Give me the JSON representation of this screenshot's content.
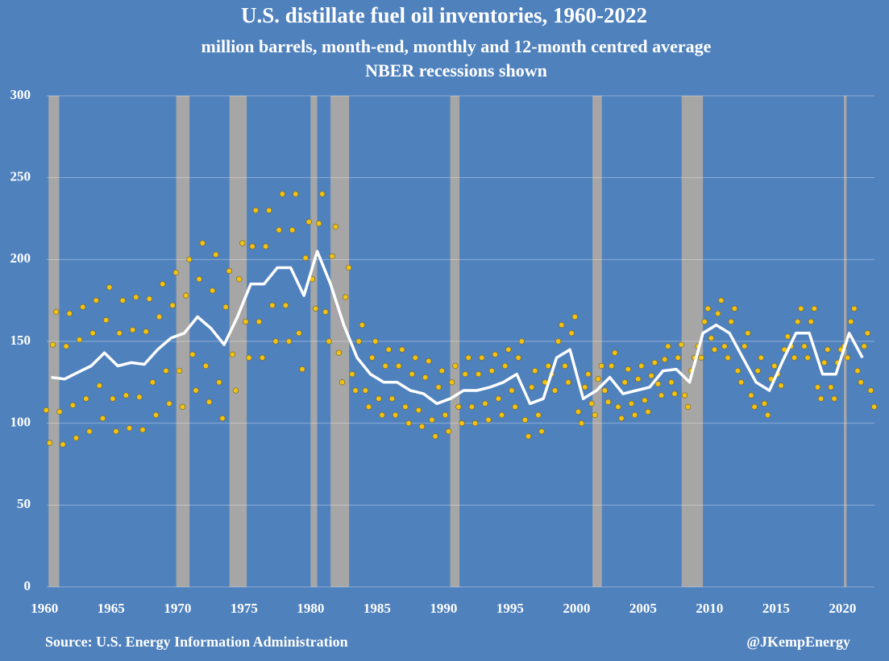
{
  "chart_data": {
    "type": "scatter",
    "title": "U.S. distillate fuel oil inventories, 1960-2022",
    "subtitle": "million barrels, month-end, monthly and 12-month centred average",
    "subtitle2": "NBER recessions shown",
    "source": "Source: U.S. Energy Information Administration",
    "credit": "@JKempEnergy",
    "xlim": [
      1959.8,
      2022.4
    ],
    "ylim": [
      0,
      300
    ],
    "xticks": [
      1960,
      1965,
      1970,
      1975,
      1980,
      1985,
      1990,
      1995,
      2000,
      2005,
      2010,
      2015,
      2020
    ],
    "yticks": [
      0,
      50,
      100,
      150,
      200,
      250,
      300
    ],
    "grid": true,
    "recession_color": "#a6a6a6",
    "recessions": [
      [
        1960.3,
        1961.1
      ],
      [
        1969.9,
        1970.9
      ],
      [
        1973.9,
        1975.2
      ],
      [
        1980.0,
        1980.5
      ],
      [
        1981.5,
        1982.9
      ],
      [
        1990.5,
        1991.2
      ],
      [
        2001.2,
        2001.9
      ],
      [
        2007.9,
        2009.5
      ],
      [
        2020.1,
        2020.3
      ]
    ],
    "points": {
      "color": "#f2c314",
      "x": [
        1960.125,
        1960.375,
        1960.625,
        1960.875,
        1961.125,
        1961.375,
        1961.625,
        1961.875,
        1962.125,
        1962.375,
        1962.625,
        1962.875,
        1963.125,
        1963.375,
        1963.625,
        1963.875,
        1964.125,
        1964.375,
        1964.625,
        1964.875,
        1965.125,
        1965.375,
        1965.625,
        1965.875,
        1966.125,
        1966.375,
        1966.625,
        1966.875,
        1967.125,
        1967.375,
        1967.625,
        1967.875,
        1968.125,
        1968.375,
        1968.625,
        1968.875,
        1969.125,
        1969.375,
        1969.625,
        1969.875,
        1970.125,
        1970.375,
        1970.625,
        1970.875,
        1971.125,
        1971.375,
        1971.625,
        1971.875,
        1972.125,
        1972.375,
        1972.625,
        1972.875,
        1973.125,
        1973.375,
        1973.625,
        1973.875,
        1974.125,
        1974.375,
        1974.625,
        1974.875,
        1975.125,
        1975.375,
        1975.625,
        1975.875,
        1976.125,
        1976.375,
        1976.625,
        1976.875,
        1977.125,
        1977.375,
        1977.625,
        1977.875,
        1978.125,
        1978.375,
        1978.625,
        1978.875,
        1979.125,
        1979.375,
        1979.625,
        1979.875,
        1980.125,
        1980.375,
        1980.625,
        1980.875,
        1981.125,
        1981.375,
        1981.625,
        1981.875,
        1982.125,
        1982.375,
        1982.625,
        1982.875,
        1983.125,
        1983.375,
        1983.625,
        1983.875,
        1984.125,
        1984.375,
        1984.625,
        1984.875,
        1985.125,
        1985.375,
        1985.625,
        1985.875,
        1986.125,
        1986.375,
        1986.625,
        1986.875,
        1987.125,
        1987.375,
        1987.625,
        1987.875,
        1988.125,
        1988.375,
        1988.625,
        1988.875,
        1989.125,
        1989.375,
        1989.625,
        1989.875,
        1990.125,
        1990.375,
        1990.625,
        1990.875,
        1991.125,
        1991.375,
        1991.625,
        1991.875,
        1992.125,
        1992.375,
        1992.625,
        1992.875,
        1993.125,
        1993.375,
        1993.625,
        1993.875,
        1994.125,
        1994.375,
        1994.625,
        1994.875,
        1995.125,
        1995.375,
        1995.625,
        1995.875,
        1996.125,
        1996.375,
        1996.625,
        1996.875,
        1997.125,
        1997.375,
        1997.625,
        1997.875,
        1998.125,
        1998.375,
        1998.625,
        1998.875,
        1999.125,
        1999.375,
        1999.625,
        1999.875,
        2000.125,
        2000.375,
        2000.625,
        2000.875,
        2001.125,
        2001.375,
        2001.625,
        2001.875,
        2002.125,
        2002.375,
        2002.625,
        2002.875,
        2003.125,
        2003.375,
        2003.625,
        2003.875,
        2004.125,
        2004.375,
        2004.625,
        2004.875,
        2005.125,
        2005.375,
        2005.625,
        2005.875,
        2006.125,
        2006.375,
        2006.625,
        2006.875,
        2007.125,
        2007.375,
        2007.625,
        2007.875,
        2008.125,
        2008.375,
        2008.625,
        2008.875,
        2009.125,
        2009.375,
        2009.625,
        2009.875,
        2010.125,
        2010.375,
        2010.625,
        2010.875,
        2011.125,
        2011.375,
        2011.625,
        2011.875,
        2012.125,
        2012.375,
        2012.625,
        2012.875,
        2013.125,
        2013.375,
        2013.625,
        2013.875,
        2014.125,
        2014.375,
        2014.625,
        2014.875,
        2015.125,
        2015.375,
        2015.625,
        2015.875,
        2016.125,
        2016.375,
        2016.625,
        2016.875,
        2017.125,
        2017.375,
        2017.625,
        2017.875,
        2018.125,
        2018.375,
        2018.625,
        2018.875,
        2019.125,
        2019.375,
        2019.625,
        2019.875,
        2020.125,
        2020.375,
        2020.625,
        2020.875,
        2021.125,
        2021.375,
        2021.625,
        2021.875,
        2022.125,
        2022.375
      ],
      "values": [
        108,
        88,
        148,
        168,
        107,
        87,
        147,
        167,
        111,
        91,
        151,
        171,
        115,
        95,
        155,
        175,
        123,
        103,
        163,
        183,
        115,
        95,
        155,
        175,
        117,
        97,
        157,
        177,
        116,
        96,
        156,
        176,
        125,
        105,
        165,
        185,
        132,
        112,
        172,
        192,
        132,
        110,
        178,
        200,
        142,
        120,
        188,
        210,
        135,
        113,
        181,
        203,
        125,
        103,
        171,
        193,
        142,
        120,
        188,
        210,
        162,
        140,
        208,
        230,
        162,
        140,
        208,
        230,
        172,
        150,
        218,
        240,
        172,
        150,
        218,
        240,
        155,
        133,
        201,
        223,
        188,
        170,
        222,
        240,
        168,
        150,
        202,
        220,
        143,
        125,
        177,
        195,
        130,
        120,
        150,
        160,
        120,
        110,
        140,
        150,
        115,
        105,
        135,
        145,
        115,
        105,
        135,
        145,
        110,
        100,
        130,
        140,
        108,
        98,
        128,
        138,
        102,
        92,
        122,
        132,
        105,
        95,
        125,
        135,
        110,
        100,
        130,
        140,
        110,
        100,
        130,
        140,
        112,
        102,
        132,
        142,
        115,
        105,
        135,
        145,
        120,
        110,
        140,
        150,
        102,
        92,
        122,
        132,
        105,
        95,
        125,
        135,
        130,
        120,
        150,
        160,
        135,
        125,
        155,
        165,
        107,
        100,
        122,
        130,
        112,
        105,
        127,
        135,
        120,
        113,
        135,
        143,
        110,
        103,
        125,
        133,
        112,
        105,
        127,
        135,
        114,
        107,
        129,
        137,
        124,
        117,
        139,
        147,
        125,
        118,
        140,
        148,
        117,
        110,
        132,
        140,
        147,
        140,
        162,
        170,
        152,
        145,
        167,
        175,
        147,
        140,
        162,
        170,
        132,
        125,
        147,
        155,
        117,
        110,
        132,
        140,
        112,
        105,
        127,
        135,
        130,
        123,
        145,
        153,
        147,
        140,
        162,
        170,
        147,
        140,
        162,
        170,
        122,
        115,
        137,
        145,
        122,
        115,
        137,
        145,
        147,
        140,
        162,
        170,
        132,
        125,
        147,
        155,
        120,
        110
      ]
    },
    "average": {
      "color": "#ffffff",
      "x": [
        1960.5,
        1961.5,
        1962.5,
        1963.5,
        1964.5,
        1965.5,
        1966.5,
        1967.5,
        1968.5,
        1969.5,
        1970.5,
        1971.5,
        1972.5,
        1973.5,
        1974.5,
        1975.5,
        1976.5,
        1977.5,
        1978.5,
        1979.5,
        1980.5,
        1981.5,
        1982.5,
        1983.5,
        1984.5,
        1985.5,
        1986.5,
        1987.5,
        1988.5,
        1989.5,
        1990.5,
        1991.5,
        1992.5,
        1993.5,
        1994.5,
        1995.5,
        1996.5,
        1997.5,
        1998.5,
        1999.5,
        2000.5,
        2001.5,
        2002.5,
        2003.5,
        2004.5,
        2005.5,
        2006.5,
        2007.5,
        2008.5,
        2009.5,
        2010.5,
        2011.5,
        2012.5,
        2013.5,
        2014.5,
        2015.5,
        2016.5,
        2017.5,
        2018.5,
        2019.5,
        2020.5,
        2021.5
      ],
      "values": [
        128,
        127,
        131,
        135,
        143,
        135,
        137,
        136,
        145,
        152,
        155,
        165,
        158,
        148,
        165,
        185,
        185,
        195,
        195,
        178,
        205,
        185,
        160,
        140,
        130,
        125,
        125,
        120,
        118,
        112,
        115,
        120,
        120,
        122,
        125,
        130,
        112,
        115,
        140,
        145,
        115,
        120,
        128,
        118,
        120,
        122,
        132,
        133,
        125,
        155,
        160,
        155,
        140,
        125,
        120,
        138,
        155,
        155,
        130,
        130,
        155,
        140
      ]
    }
  }
}
